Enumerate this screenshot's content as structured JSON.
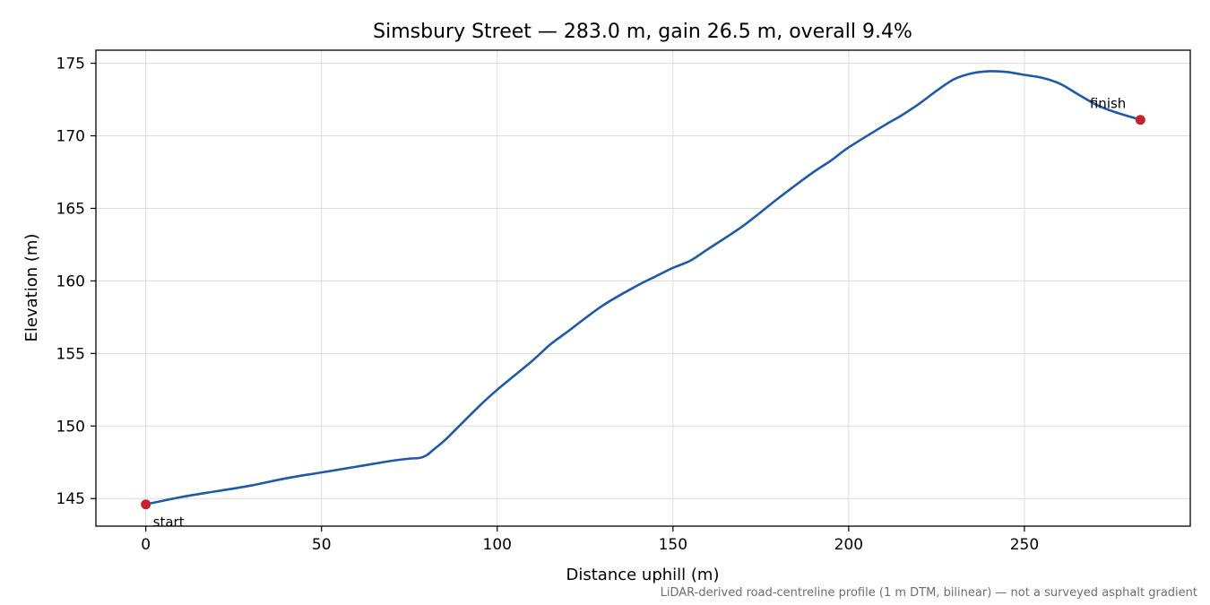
{
  "chart_data": {
    "type": "line",
    "title": "Simsbury Street — 283.0 m, gain 26.5 m, overall 9.4%",
    "xlabel": "Distance uphill (m)",
    "ylabel": "Elevation (m)",
    "xlim": [
      -14.2,
      297.2
    ],
    "ylim": [
      143.1,
      175.9
    ],
    "x_ticks": [
      0,
      50,
      100,
      150,
      200,
      250
    ],
    "y_ticks": [
      145,
      150,
      155,
      160,
      165,
      170,
      175
    ],
    "grid": true,
    "series": [
      {
        "color": "#1f5aa8",
        "x": [
          0,
          10,
          20,
          30,
          40,
          50,
          60,
          70,
          75,
          78,
          80,
          82,
          85,
          90,
          95,
          100,
          110,
          115,
          120,
          130,
          140,
          145,
          150,
          155,
          160,
          170,
          180,
          190,
          195,
          200,
          210,
          215,
          220,
          225,
          230,
          235,
          240,
          245,
          250,
          255,
          260,
          265,
          270,
          275,
          283
        ],
        "y": [
          144.6,
          145.1,
          145.5,
          145.9,
          146.4,
          146.8,
          147.2,
          147.6,
          147.75,
          147.8,
          148.0,
          148.4,
          149.0,
          150.2,
          151.4,
          152.5,
          154.5,
          155.6,
          156.5,
          158.3,
          159.7,
          160.3,
          160.9,
          161.4,
          162.2,
          163.8,
          165.7,
          167.5,
          168.3,
          169.2,
          170.7,
          171.4,
          172.2,
          173.1,
          173.9,
          174.3,
          174.45,
          174.4,
          174.2,
          174.0,
          173.6,
          172.9,
          172.2,
          171.7,
          171.1
        ]
      }
    ],
    "markers": [
      {
        "x": 0,
        "y": 144.6,
        "label": "start",
        "color": "#c4222f"
      },
      {
        "x": 283,
        "y": 171.1,
        "label": "finish",
        "color": "#c4222f"
      }
    ],
    "footnote": "LiDAR-derived road-centreline profile (1 m DTM, bilinear) — not a surveyed asphalt gradient"
  }
}
